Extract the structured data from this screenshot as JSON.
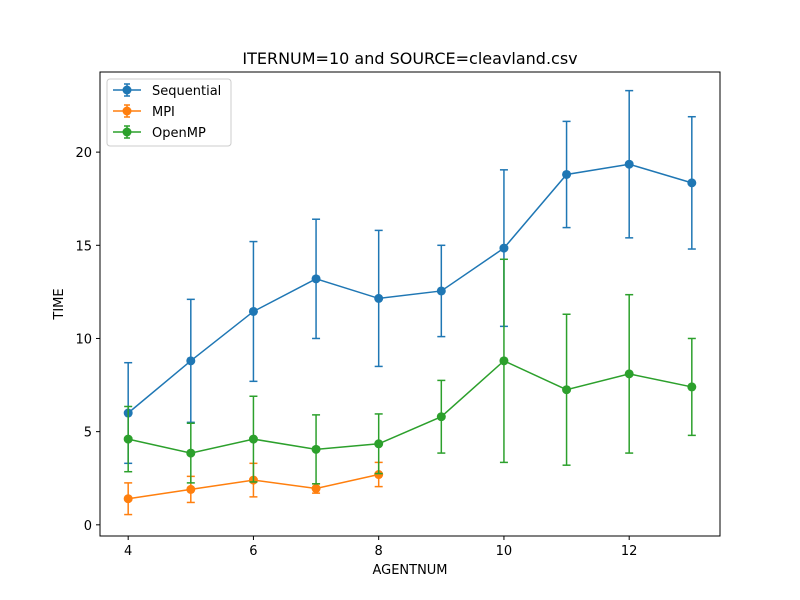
{
  "chart_data": {
    "type": "line",
    "title": "ITERNUM=10 and SOURCE=cleavland.csv",
    "xlabel": "AGENTNUM",
    "ylabel": "TIME",
    "xlim": [
      3.55,
      13.45
    ],
    "ylim": [
      -0.6,
      24.3
    ],
    "xticks": [
      4,
      6,
      8,
      10,
      12
    ],
    "yticks": [
      0,
      5,
      10,
      15,
      20
    ],
    "grid": false,
    "legend_position": "top-left",
    "series": [
      {
        "name": "Sequential",
        "color": "#1f77b4",
        "x": [
          4,
          5,
          6,
          7,
          8,
          9,
          10,
          11,
          12,
          13
        ],
        "y": [
          6.0,
          8.8,
          11.45,
          13.2,
          12.15,
          12.55,
          14.85,
          18.8,
          19.35,
          18.35
        ],
        "err": [
          2.7,
          3.3,
          3.75,
          3.2,
          3.65,
          2.45,
          4.2,
          2.85,
          3.95,
          3.55
        ]
      },
      {
        "name": "MPI",
        "color": "#ff7f0e",
        "x": [
          4,
          5,
          6,
          7,
          8
        ],
        "y": [
          1.4,
          1.9,
          2.4,
          1.95,
          2.7
        ],
        "err": [
          0.85,
          0.7,
          0.9,
          0.25,
          0.65
        ]
      },
      {
        "name": "OpenMP",
        "color": "#2ca02c",
        "x": [
          4,
          5,
          6,
          7,
          8,
          9,
          10,
          11,
          12,
          13
        ],
        "y": [
          4.6,
          3.85,
          4.6,
          4.05,
          4.35,
          5.8,
          8.8,
          7.25,
          8.1,
          7.4
        ],
        "err": [
          1.75,
          1.6,
          2.3,
          1.85,
          1.6,
          1.95,
          5.45,
          4.05,
          4.25,
          2.6
        ]
      }
    ]
  }
}
